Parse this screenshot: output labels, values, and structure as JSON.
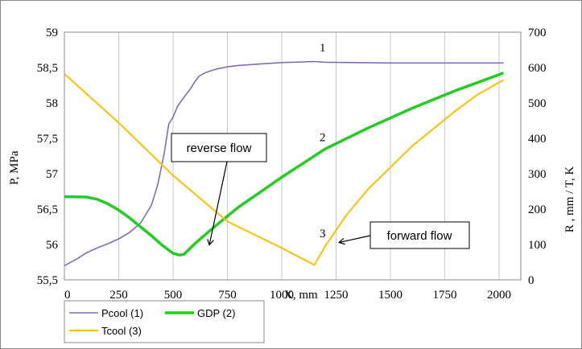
{
  "chart_data": {
    "type": "line",
    "xlabel": "X, mm",
    "ylabel_left": "P, MPa",
    "ylabel_right": "R , mm / T, K",
    "xlim": [
      0,
      2100
    ],
    "ylim_left": [
      55.5,
      59
    ],
    "ylim_right": [
      0,
      700
    ],
    "x_ticks": [
      0,
      250,
      500,
      750,
      1000,
      1250,
      1500,
      1750,
      2000
    ],
    "y_left_ticks": [
      "55,5",
      "56",
      "56,5",
      "57",
      "57,5",
      "58",
      "58,5",
      "59"
    ],
    "y_left_tick_values": [
      55.5,
      56,
      56.5,
      57,
      57.5,
      58,
      58.5,
      59
    ],
    "y_right_ticks": [
      0,
      100,
      200,
      300,
      400,
      500,
      600,
      700
    ],
    "grid": "vertical",
    "legend_position": "bottom-left",
    "series": [
      {
        "name": "Pcool (1)",
        "axis": "left",
        "color": "#7f6fae",
        "x": [
          0,
          60,
          100,
          150,
          200,
          250,
          300,
          350,
          400,
          430,
          460,
          480,
          490,
          500,
          520,
          550,
          580,
          600,
          620,
          650,
          700,
          750,
          800,
          900,
          1000,
          1100,
          1150,
          1200,
          1500,
          1800,
          2020
        ],
        "y": [
          55.7,
          55.8,
          55.88,
          55.95,
          56.01,
          56.08,
          56.17,
          56.3,
          56.55,
          56.85,
          57.3,
          57.7,
          57.75,
          57.8,
          57.95,
          58.08,
          58.2,
          58.3,
          58.38,
          58.43,
          58.48,
          58.51,
          58.53,
          58.55,
          58.57,
          58.58,
          58.585,
          58.575,
          58.565,
          58.565,
          58.565
        ]
      },
      {
        "name": "GDP (2)",
        "axis": "right",
        "color": "#22cc22",
        "x": [
          0,
          100,
          150,
          200,
          250,
          300,
          350,
          400,
          450,
          500,
          530,
          550,
          600,
          700,
          800,
          1000,
          1200,
          1400,
          1600,
          1800,
          2000,
          2020
        ],
        "y": [
          235,
          234,
          228,
          215,
          197,
          175,
          150,
          125,
          98,
          75,
          70,
          72,
          102,
          155,
          205,
          290,
          370,
          430,
          485,
          535,
          580,
          585
        ]
      },
      {
        "name": "Tcool (3)",
        "axis": "right",
        "color": "#ffbf00",
        "x": [
          0,
          250,
          500,
          750,
          1000,
          1150,
          1200,
          1300,
          1400,
          1500,
          1600,
          1700,
          1800,
          1900,
          2020
        ],
        "y": [
          582,
          444,
          295,
          165,
          90,
          42,
          95,
          185,
          258,
          318,
          378,
          428,
          478,
          523,
          565
        ]
      }
    ],
    "annotations": [
      {
        "text": "1",
        "x": 1100,
        "y_left": 58.73
      },
      {
        "text": "2",
        "x": 1100,
        "y_right": 392
      },
      {
        "text": "3",
        "x": 1100,
        "y_right": 120
      }
    ],
    "callouts": [
      {
        "text": "reverse flow",
        "target_x": 675,
        "target_y_right": 210
      },
      {
        "text": "forward flow",
        "target_x": 1260,
        "target_y_right": 113
      }
    ]
  }
}
